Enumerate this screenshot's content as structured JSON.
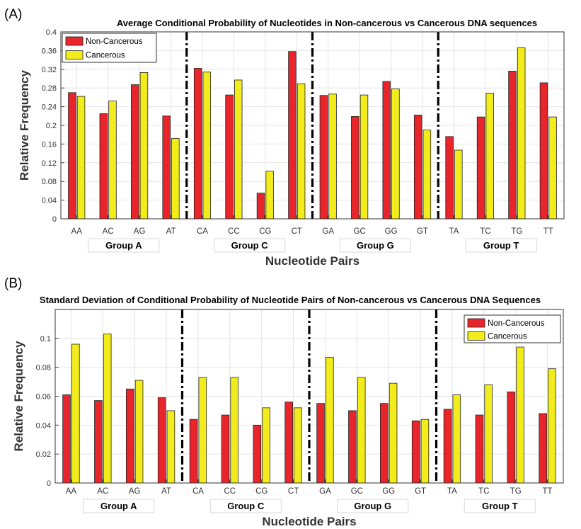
{
  "colors": {
    "non_cancerous": "#e8252a",
    "cancerous": "#f2ec1c",
    "bar_edge": "#222222",
    "separator": "#000000"
  },
  "chart_data": [
    {
      "type": "bar",
      "panel_label": "(A)",
      "title": "Average Conditional Probability of Nucleotides in Non-cancerous vs Cancerous DNA sequences",
      "xlabel": "Nucleotide Pairs",
      "ylabel": "Relative Frequency",
      "ylim": [
        0,
        0.4
      ],
      "yticks": [
        0,
        0.04,
        0.08,
        0.12,
        0.16,
        0.2,
        0.24,
        0.28,
        0.32,
        0.36,
        0.4
      ],
      "ytick_labels": [
        "0",
        "0.04",
        "0.08",
        "0.12",
        "0.16",
        "0.2",
        "0.24",
        "0.28",
        "0.32",
        "0.36",
        "0.4"
      ],
      "categories": [
        "AA",
        "AC",
        "AG",
        "AT",
        "CA",
        "CC",
        "CG",
        "CT",
        "GA",
        "GC",
        "GG",
        "GT",
        "TA",
        "TC",
        "TG",
        "TT"
      ],
      "groups": [
        "Group A",
        "Group C",
        "Group G",
        "Group T"
      ],
      "legend_position": "top-left",
      "series": [
        {
          "name": "Non-Cancerous",
          "values": [
            0.27,
            0.225,
            0.287,
            0.22,
            0.322,
            0.265,
            0.055,
            0.358,
            0.264,
            0.219,
            0.294,
            0.222,
            0.176,
            0.218,
            0.316,
            0.291
          ]
        },
        {
          "name": "Cancerous",
          "values": [
            0.262,
            0.252,
            0.313,
            0.172,
            0.314,
            0.297,
            0.102,
            0.289,
            0.267,
            0.265,
            0.278,
            0.19,
            0.147,
            0.269,
            0.366,
            0.218
          ]
        }
      ]
    },
    {
      "type": "bar",
      "panel_label": "(B)",
      "title": "Standard Deviation of Conditional Probability of Nucleotide Pairs of Non-cancerous vs Cancerous DNA Sequences",
      "xlabel": "Nucleotide Pairs",
      "ylabel": "Relative Frequency",
      "ylim": [
        0,
        0.12
      ],
      "yticks": [
        0,
        0.02,
        0.04,
        0.06,
        0.08,
        0.1
      ],
      "ytick_labels": [
        "0",
        "0.02",
        "0.04",
        "0.06",
        "0.08",
        "0.1"
      ],
      "categories": [
        "AA",
        "AC",
        "AG",
        "AT",
        "CA",
        "CC",
        "CG",
        "CT",
        "GA",
        "GC",
        "GG",
        "GT",
        "TA",
        "TC",
        "TG",
        "TT"
      ],
      "groups": [
        "Group A",
        "Group C",
        "Group G",
        "Group T"
      ],
      "legend_position": "top-right",
      "series": [
        {
          "name": "Non-Cancerous",
          "values": [
            0.061,
            0.057,
            0.065,
            0.059,
            0.044,
            0.047,
            0.04,
            0.056,
            0.055,
            0.05,
            0.055,
            0.043,
            0.051,
            0.047,
            0.063,
            0.048
          ]
        },
        {
          "name": "Cancerous",
          "values": [
            0.096,
            0.103,
            0.071,
            0.05,
            0.073,
            0.073,
            0.052,
            0.052,
            0.087,
            0.073,
            0.069,
            0.044,
            0.061,
            0.068,
            0.094,
            0.079
          ]
        }
      ]
    }
  ]
}
